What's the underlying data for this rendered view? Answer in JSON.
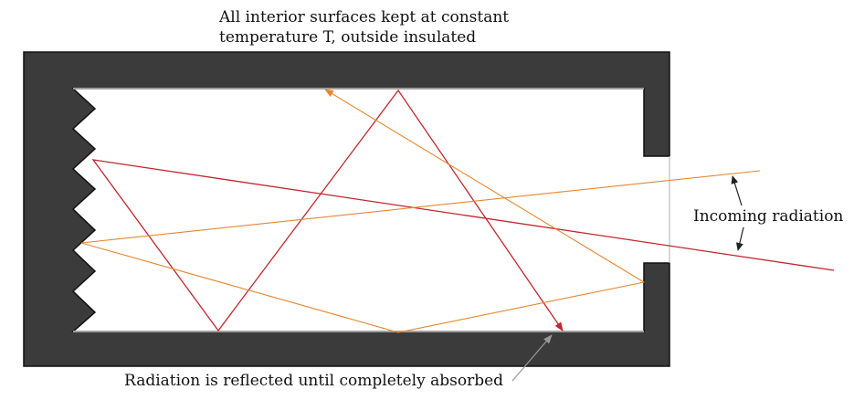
{
  "labels": {
    "top_caption": "All interior surfaces kept at constant\ntemperature T, outside insulated",
    "bottom_caption": "Radiation is reflected until completely absorbed",
    "right_caption": "Incoming radiation"
  },
  "colors": {
    "wall": "#3b3b3b",
    "interior_edge": "#9e9e9e",
    "red_ray": "#c0272d",
    "orange_ray": "#e6872f",
    "annotation_arrow": "#222222",
    "pointer_arrow": "#999999"
  }
}
